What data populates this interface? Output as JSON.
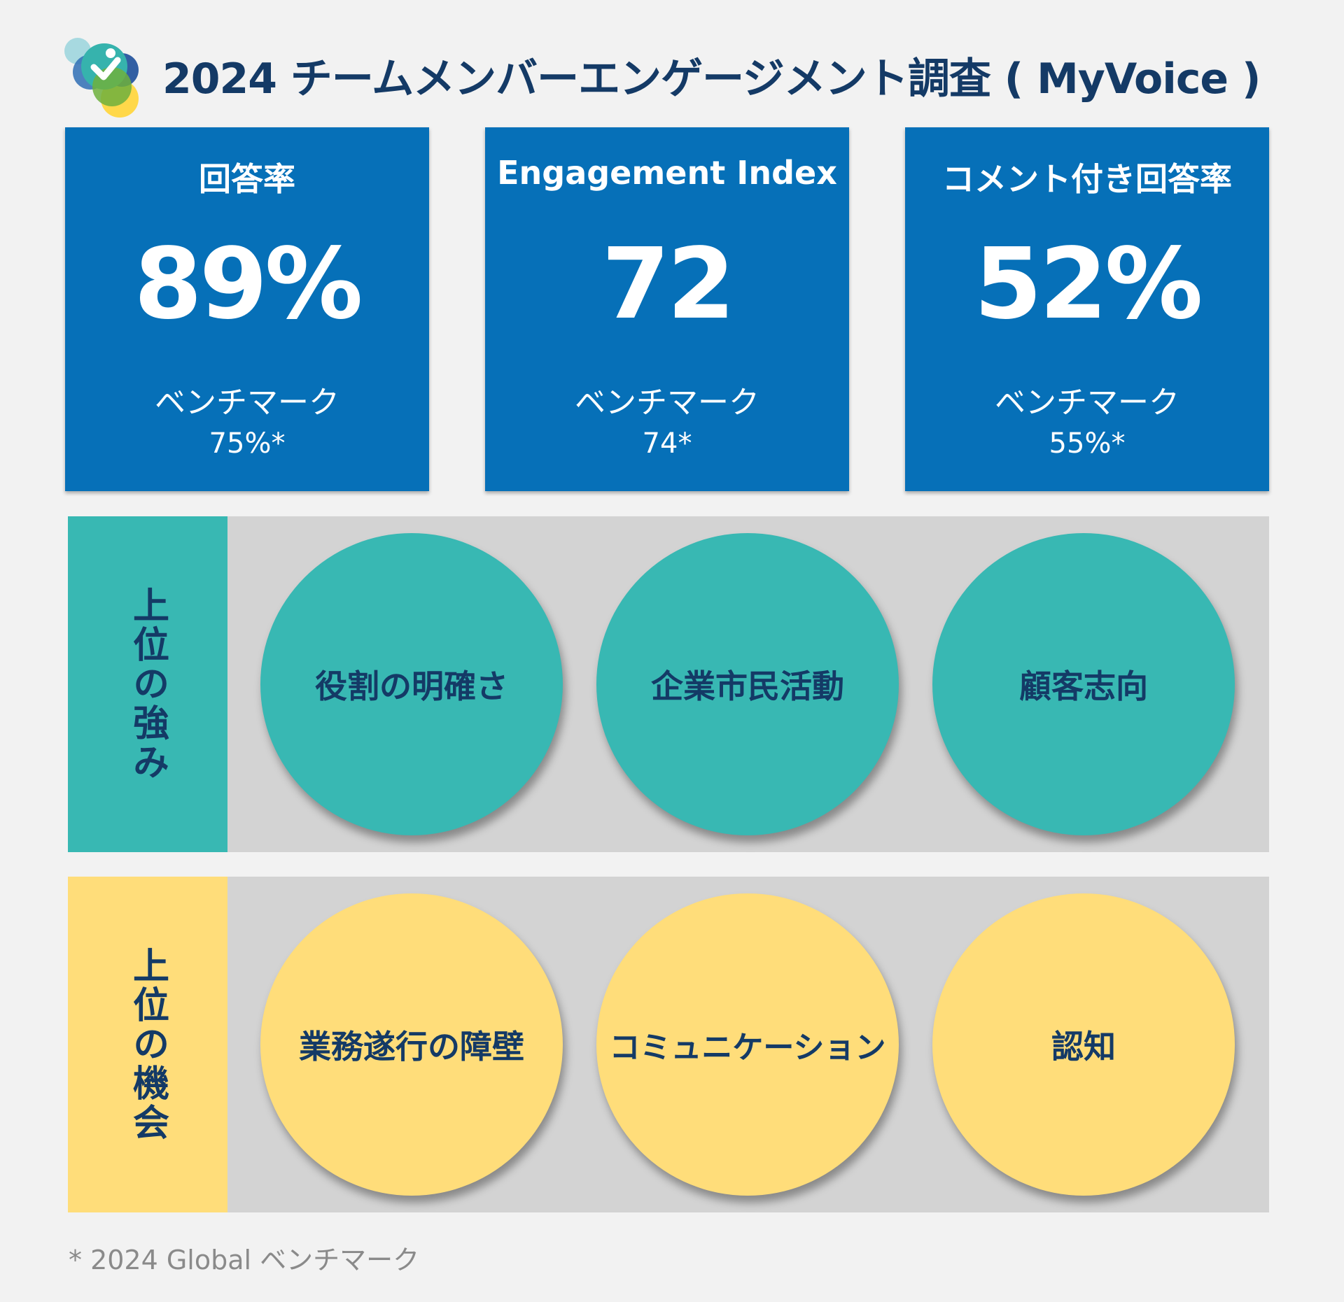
{
  "title": "2024 チームメンバーエンゲージメント調査 ( MyVoice )",
  "colors": {
    "background": "#f2f2f2",
    "kpi_box": "#0670b8",
    "strength_accent": "#38b8b3",
    "opportunity_accent": "#ffdd7a",
    "panel": "#d3d3d3",
    "navy_text": "#143a66"
  },
  "kpis": [
    {
      "label": "回答率",
      "value": "89%",
      "benchmark_label": "ベンチマーク",
      "benchmark_value": "75%*"
    },
    {
      "label": "Engagement Index",
      "value": "72",
      "benchmark_label": "ベンチマーク",
      "benchmark_value": "74*"
    },
    {
      "label": "コメント付き回答率",
      "value": "52%",
      "benchmark_label": "ベンチマーク",
      "benchmark_value": "55%*"
    }
  ],
  "strengths": {
    "heading": "上位の強み",
    "items": [
      "役割の明確さ",
      "企業市民活動",
      "顧客志向"
    ]
  },
  "opportunities": {
    "heading": "上位の機会",
    "items": [
      "業務遂行の障壁",
      "コミュニケーション",
      "認知"
    ]
  },
  "footnote": "* 2024 Global ベンチマーク"
}
